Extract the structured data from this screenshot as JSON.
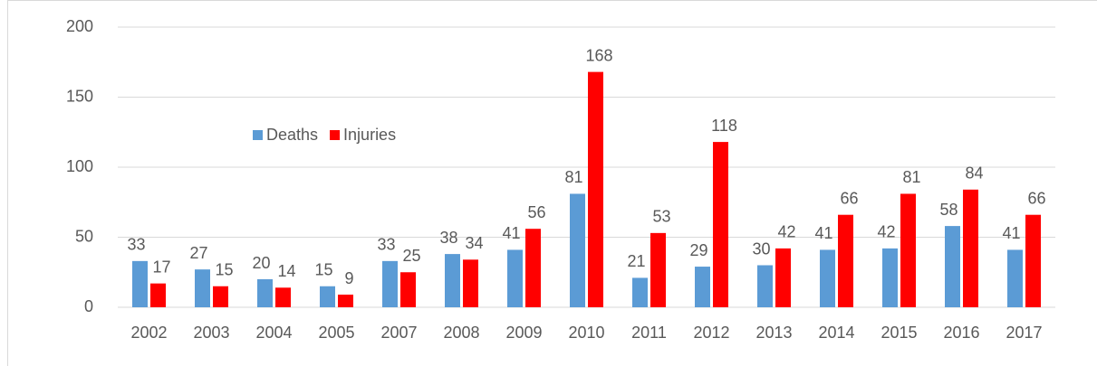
{
  "chart_data": {
    "type": "bar",
    "categories": [
      "2002",
      "2003",
      "2004",
      "2005",
      "2007",
      "2008",
      "2009",
      "2010",
      "2011",
      "2012",
      "2013",
      "2014",
      "2015",
      "2016",
      "2017"
    ],
    "series": [
      {
        "name": "Deaths",
        "color": "#5b9bd5",
        "values": [
          33,
          27,
          20,
          15,
          33,
          38,
          41,
          81,
          21,
          29,
          30,
          41,
          42,
          58,
          41
        ]
      },
      {
        "name": "Injuries",
        "color": "#ff0000",
        "values": [
          17,
          15,
          14,
          9,
          25,
          34,
          56,
          168,
          53,
          118,
          42,
          66,
          81,
          84,
          66
        ]
      }
    ],
    "ylim": [
      0,
      200
    ],
    "yticks": [
      0,
      50,
      100,
      150,
      200
    ],
    "grid": true,
    "legend": "inside-top-left",
    "data_labels": true
  }
}
